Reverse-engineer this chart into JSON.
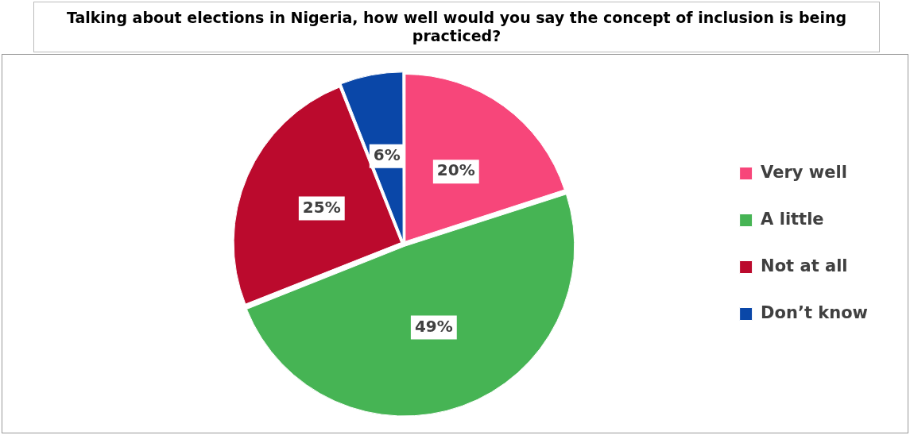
{
  "chart_data": {
    "type": "pie",
    "title": "Talking about elections in Nigeria, how well would you say the concept of inclusion is being practiced?",
    "categories": [
      "Very well",
      "A little",
      "Not at all",
      "Don’t know"
    ],
    "values": [
      20,
      49,
      25,
      6
    ],
    "colors": [
      "#f7467a",
      "#46b454",
      "#bb0a2d",
      "#0a47a8"
    ],
    "value_labels": [
      "20%",
      "49%",
      "25%",
      "6%"
    ],
    "legend": "right"
  }
}
